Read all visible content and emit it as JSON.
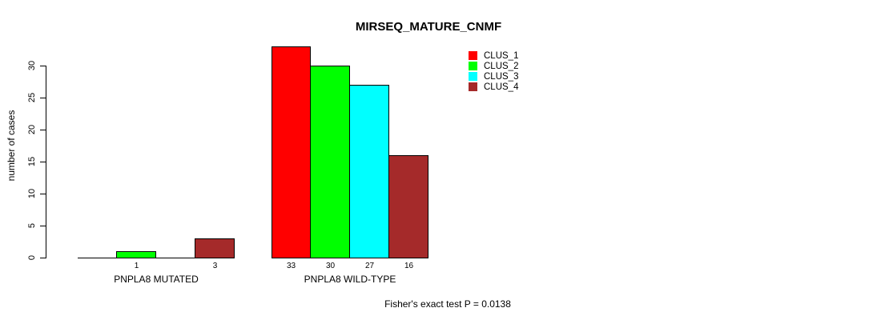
{
  "chart_data": {
    "type": "bar",
    "title": "MIRSEQ_MATURE_CNMF",
    "xlabel": "",
    "ylabel": "number of cases",
    "categories": [
      "PNPLA8 MUTATED",
      "PNPLA8 WILD-TYPE"
    ],
    "series": [
      {
        "name": "CLUS_1",
        "color": "#FF0000",
        "values": [
          0,
          33
        ]
      },
      {
        "name": "CLUS_2",
        "color": "#00FF00",
        "values": [
          1,
          30
        ]
      },
      {
        "name": "CLUS_3",
        "color": "#00FFFF",
        "values": [
          0,
          27
        ]
      },
      {
        "name": "CLUS_4",
        "color": "#A52A2A",
        "values": [
          3,
          16
        ]
      }
    ],
    "yticks": [
      0,
      5,
      10,
      15,
      20,
      25,
      30
    ],
    "ylim": [
      0,
      33
    ],
    "grid": false,
    "legend_position": "top-right",
    "bar_value_labels": {
      "PNPLA8 MUTATED": [
        null,
        1,
        null,
        3
      ],
      "PNPLA8 WILD-TYPE": [
        33,
        30,
        27,
        16
      ]
    },
    "annotation": "Fisher's exact test P = 0.0138"
  }
}
